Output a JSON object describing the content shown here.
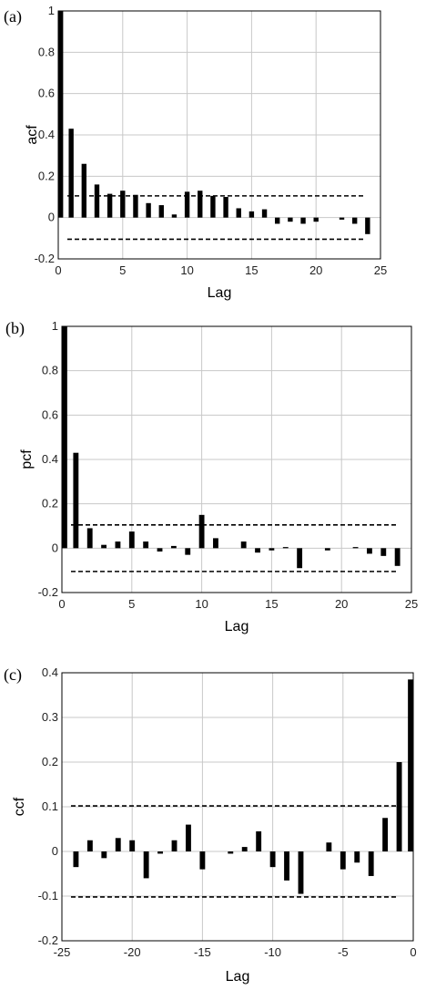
{
  "chart_data": [
    {
      "type": "bar",
      "panel_label": "(a)",
      "xlabel": "Lag",
      "ylabel": "acf",
      "xlim": [
        0,
        25
      ],
      "ylim": [
        -0.2,
        1
      ],
      "xticks": [
        0,
        5,
        10,
        15,
        20,
        25
      ],
      "yticks": [
        -0.2,
        0,
        0.2,
        0.4,
        0.6,
        0.8,
        1
      ],
      "grid": true,
      "confidence_bounds": [
        0.105,
        -0.105
      ],
      "x": [
        0,
        1,
        2,
        3,
        4,
        5,
        6,
        7,
        8,
        9,
        10,
        11,
        12,
        13,
        14,
        15,
        16,
        17,
        18,
        19,
        20,
        21,
        22,
        23,
        24
      ],
      "values": [
        1.0,
        0.43,
        0.26,
        0.16,
        0.115,
        0.13,
        0.11,
        0.07,
        0.06,
        0.015,
        0.125,
        0.13,
        0.105,
        0.1,
        0.045,
        0.03,
        0.04,
        -0.03,
        -0.02,
        -0.03,
        -0.02,
        0.0,
        -0.01,
        -0.03,
        -0.08
      ]
    },
    {
      "type": "bar",
      "panel_label": "(b)",
      "xlabel": "Lag",
      "ylabel": "pcf",
      "xlim": [
        0,
        25
      ],
      "ylim": [
        -0.2,
        1
      ],
      "xticks": [
        0,
        5,
        10,
        15,
        20,
        25
      ],
      "yticks": [
        -0.2,
        0,
        0.2,
        0.4,
        0.6,
        0.8,
        1
      ],
      "grid": true,
      "confidence_bounds": [
        0.105,
        -0.105
      ],
      "x": [
        0,
        1,
        2,
        3,
        4,
        5,
        6,
        7,
        8,
        9,
        10,
        11,
        12,
        13,
        14,
        15,
        16,
        17,
        18,
        19,
        20,
        21,
        22,
        23,
        24
      ],
      "values": [
        1.0,
        0.43,
        0.09,
        0.015,
        0.03,
        0.075,
        0.03,
        -0.015,
        0.01,
        -0.03,
        0.15,
        0.045,
        0.0,
        0.03,
        -0.02,
        -0.01,
        0.005,
        -0.09,
        0.0,
        -0.01,
        0.0,
        0.005,
        -0.025,
        -0.035,
        -0.08
      ]
    },
    {
      "type": "bar",
      "panel_label": "(c)",
      "xlabel": "Lag",
      "ylabel": "ccf",
      "xlim": [
        -25,
        0
      ],
      "ylim": [
        -0.2,
        0.4
      ],
      "xticks": [
        -25,
        -20,
        -15,
        -10,
        -5,
        0
      ],
      "yticks": [
        -0.2,
        -0.1,
        0,
        0.1,
        0.2,
        0.3,
        0.4
      ],
      "grid": true,
      "confidence_bounds": [
        0.102,
        -0.102
      ],
      "x": [
        -24,
        -23,
        -22,
        -21,
        -20,
        -19,
        -18,
        -17,
        -16,
        -15,
        -14,
        -13,
        -12,
        -11,
        -10,
        -9,
        -8,
        -7,
        -6,
        -5,
        -4,
        -3,
        -2,
        -1,
        0
      ],
      "values": [
        -0.035,
        0.025,
        -0.015,
        0.03,
        0.025,
        -0.06,
        -0.005,
        0.025,
        0.06,
        -0.04,
        0.0,
        -0.005,
        0.01,
        0.045,
        -0.035,
        -0.065,
        -0.095,
        0.0,
        0.02,
        -0.04,
        -0.025,
        -0.055,
        0.075,
        0.2,
        0.385
      ]
    }
  ]
}
